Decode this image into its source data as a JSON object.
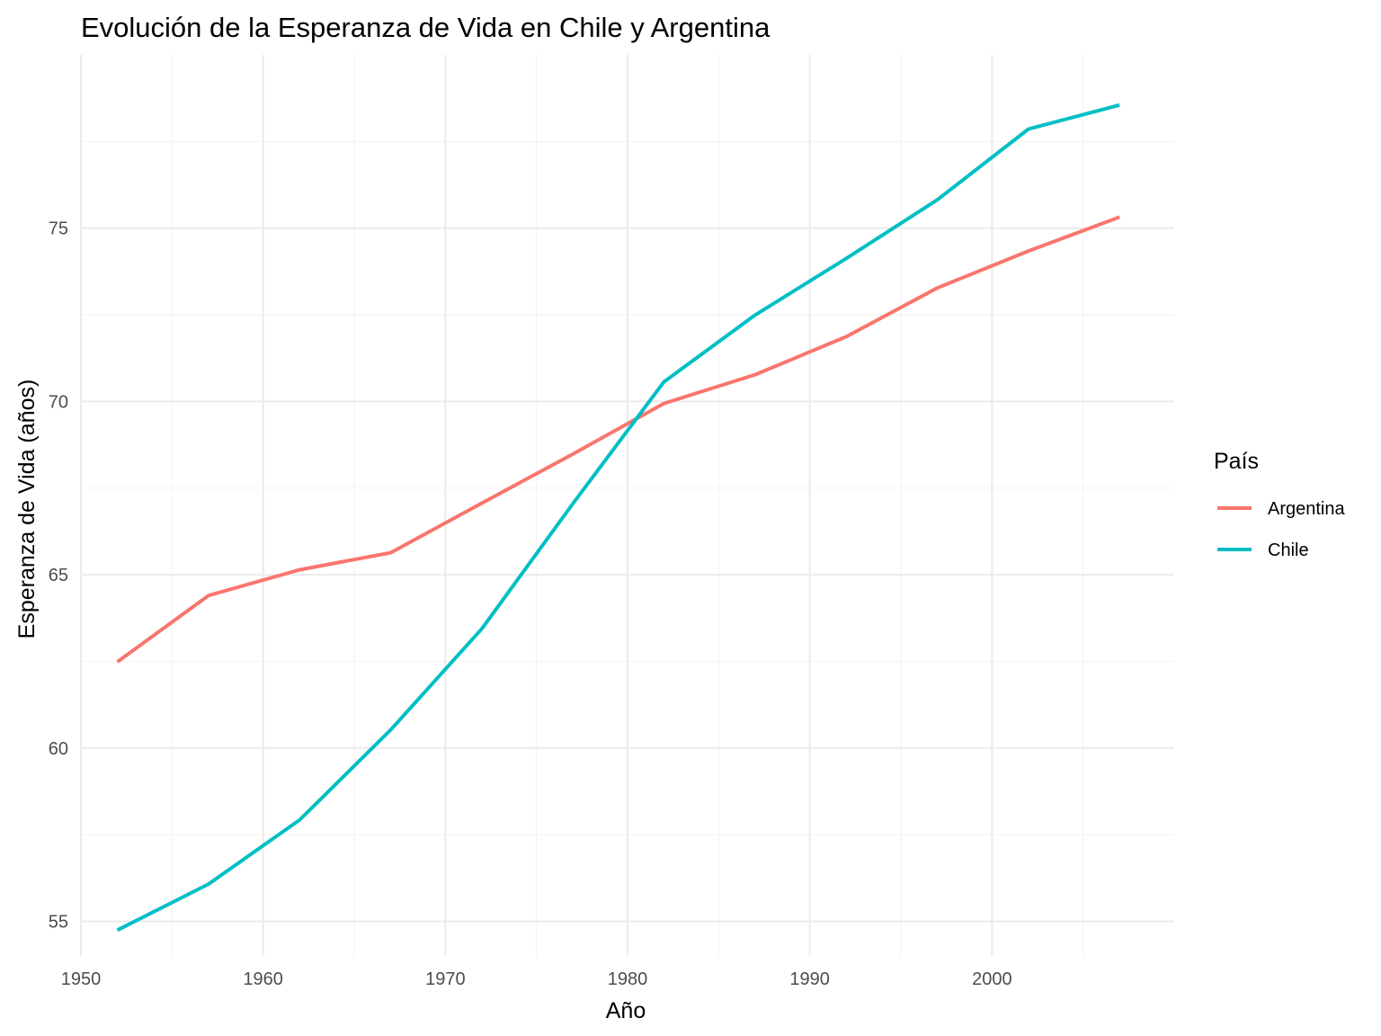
{
  "chart_data": {
    "type": "line",
    "title": "Evolución de la Esperanza de Vida en Chile y Argentina",
    "xlabel": "Año",
    "ylabel": "Esperanza de Vida (años)",
    "x": [
      1952,
      1957,
      1962,
      1967,
      1972,
      1977,
      1982,
      1987,
      1992,
      1997,
      2002,
      2007
    ],
    "xlim": [
      1950,
      2010
    ],
    "ylim": [
      54,
      80
    ],
    "x_ticks": [
      1950,
      1960,
      1970,
      1980,
      1990,
      2000
    ],
    "x_tick_labels": [
      "1950",
      "1960",
      "1970",
      "1980",
      "1990",
      "2000"
    ],
    "y_ticks": [
      55,
      60,
      65,
      70,
      75
    ],
    "y_tick_labels": [
      "55",
      "60",
      "65",
      "70",
      "75"
    ],
    "grid": true,
    "legend": {
      "title": "País",
      "position": "right"
    },
    "series": [
      {
        "name": "Argentina",
        "color": "#F8766D",
        "values": [
          62.485,
          64.399,
          65.142,
          65.634,
          67.065,
          68.481,
          69.942,
          70.774,
          71.868,
          73.275,
          74.34,
          75.32
        ]
      },
      {
        "name": "Chile",
        "color": "#00BFC4",
        "values": [
          54.745,
          56.074,
          57.924,
          60.523,
          63.441,
          67.052,
          70.565,
          72.492,
          74.126,
          75.816,
          77.86,
          78.553
        ]
      }
    ]
  }
}
